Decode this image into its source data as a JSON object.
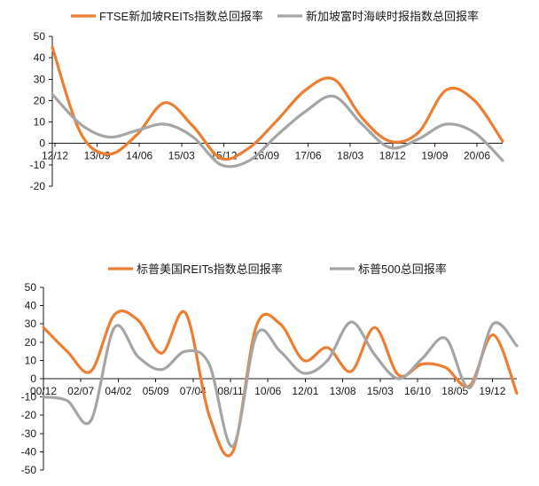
{
  "chart_data": [
    {
      "type": "line",
      "ylim": [
        -20,
        50
      ],
      "yticks": [
        50,
        40,
        30,
        20,
        10,
        0,
        -10,
        -20
      ],
      "x_labels": [
        "12/12",
        "13/09",
        "14/06",
        "15/03",
        "15/12",
        "16/09",
        "17/06",
        "18/03",
        "18/12",
        "19/09",
        "20/06"
      ],
      "legend_position": "top",
      "series": [
        {
          "name": "FTSE新加坡REITs指数总回报率",
          "color": "#ED7D31",
          "values": [
            45,
            5,
            -5,
            4,
            19,
            8,
            -7,
            -2,
            11,
            25,
            30,
            12,
            1,
            5,
            25,
            20,
            1
          ]
        },
        {
          "name": "新加坡富时海峡时报指数总回报率",
          "color": "#A5A5A5",
          "values": [
            23,
            9,
            3,
            6,
            9,
            3,
            -10,
            -8,
            4,
            15,
            22,
            9,
            -2,
            2,
            9,
            5,
            -8
          ]
        }
      ]
    },
    {
      "type": "line",
      "ylim": [
        -50,
        50
      ],
      "yticks": [
        50,
        40,
        30,
        20,
        10,
        0,
        -10,
        -20,
        -30,
        -40,
        -50
      ],
      "x_labels": [
        "00/12",
        "02/07",
        "04/02",
        "05/09",
        "07/04",
        "08/11",
        "10/06",
        "12/01",
        "13/08",
        "15/03",
        "16/10",
        "18/05",
        "19/12"
      ],
      "legend_position": "top",
      "series": [
        {
          "name": "标普美国REITs指数总回报率",
          "color": "#ED7D31",
          "values": [
            28,
            15,
            4,
            35,
            32,
            14,
            36,
            -20,
            -40,
            29,
            30,
            10,
            17,
            4,
            28,
            2,
            8,
            6,
            -4,
            24,
            -8
          ]
        },
        {
          "name": "标普500总回报率",
          "color": "#A5A5A5",
          "values": [
            -10,
            -12,
            -23,
            28,
            12,
            5,
            15,
            8,
            -37,
            24,
            15,
            3,
            10,
            31,
            13,
            0,
            11,
            22,
            -5,
            30,
            18
          ]
        }
      ]
    }
  ]
}
